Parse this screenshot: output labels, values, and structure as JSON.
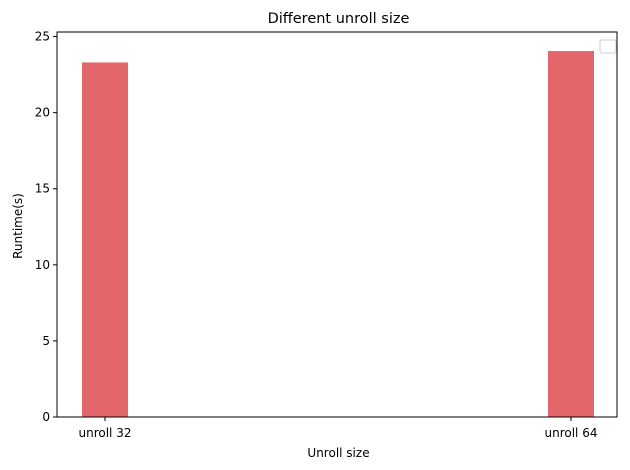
{
  "chart_data": {
    "type": "bar",
    "title": "Different unroll size",
    "xlabel": "Unroll size",
    "ylabel": "Runtime(s)",
    "categories": [
      "unroll 32",
      "unroll 64"
    ],
    "values": [
      23.3,
      24.05
    ],
    "ylim": [
      0,
      25.3
    ],
    "yticks": [
      0,
      5,
      10,
      15,
      20,
      25
    ],
    "grid": false,
    "legend_placement": "top-right",
    "bar_color": "#e3676a"
  }
}
